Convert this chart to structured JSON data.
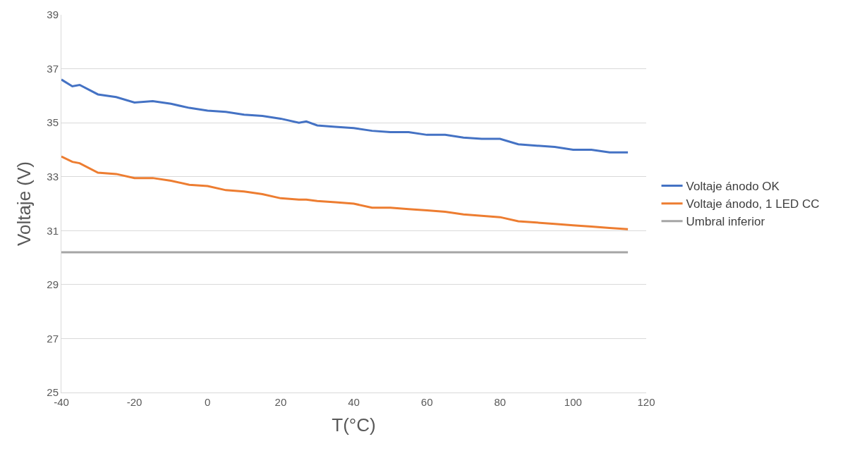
{
  "chart_data": {
    "type": "line",
    "xlabel": "T(°C)",
    "ylabel": "Voltaje (V)",
    "x": [
      -40,
      -37,
      -35,
      -30,
      -25,
      -20,
      -15,
      -10,
      -5,
      0,
      5,
      10,
      15,
      20,
      25,
      27,
      30,
      35,
      40,
      45,
      50,
      55,
      60,
      65,
      70,
      75,
      80,
      85,
      90,
      95,
      100,
      105,
      110,
      115
    ],
    "series": [
      {
        "name": "Voltaje ánodo OK",
        "color": "#4472c4",
        "values": [
          36.6,
          36.35,
          36.4,
          36.05,
          35.95,
          35.75,
          35.8,
          35.7,
          35.55,
          35.45,
          35.4,
          35.3,
          35.25,
          35.15,
          35.0,
          35.05,
          34.9,
          34.85,
          34.8,
          34.7,
          34.65,
          34.65,
          34.55,
          34.55,
          34.45,
          34.4,
          34.4,
          34.2,
          34.15,
          34.1,
          34.0,
          34.0,
          33.9,
          33.9
        ]
      },
      {
        "name": "Voltaje ánodo, 1 LED CC",
        "color": "#ed7d31",
        "values": [
          33.75,
          33.55,
          33.5,
          33.15,
          33.1,
          32.95,
          32.95,
          32.85,
          32.7,
          32.65,
          32.5,
          32.45,
          32.35,
          32.2,
          32.15,
          32.15,
          32.1,
          32.05,
          32.0,
          31.85,
          31.85,
          31.8,
          31.75,
          31.7,
          31.6,
          31.55,
          31.5,
          31.35,
          31.3,
          31.25,
          31.2,
          31.15,
          31.1,
          31.05
        ]
      },
      {
        "name": "Umbral inferior",
        "color": "#a5a5a5",
        "x": [
          -40,
          115
        ],
        "values": [
          30.2,
          30.2
        ]
      }
    ],
    "xlim": [
      -40,
      120
    ],
    "xticks": [
      -40,
      -20,
      0,
      20,
      40,
      60,
      80,
      100,
      120
    ],
    "ylim": [
      25,
      39
    ],
    "yticks": [
      25,
      27,
      29,
      31,
      33,
      35,
      37,
      39
    ],
    "grid": "y",
    "legend": "right",
    "marker": "none",
    "line_style": "solid"
  }
}
